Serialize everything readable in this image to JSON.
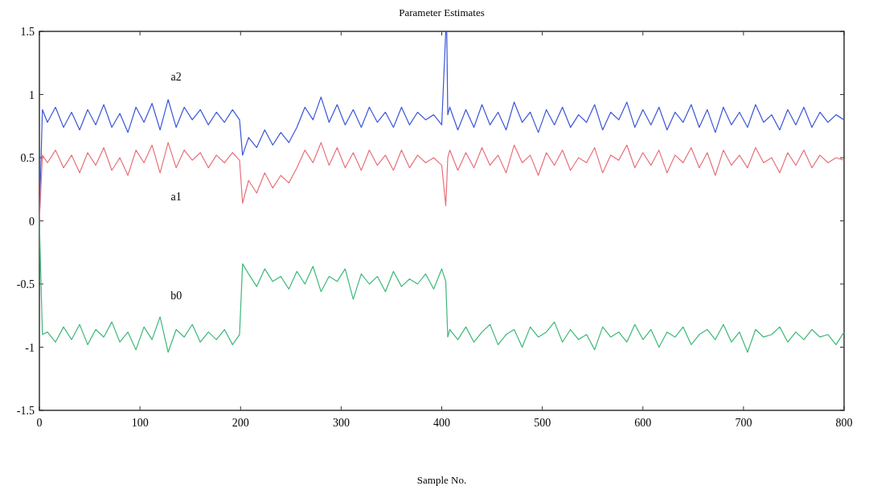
{
  "chart_data": {
    "type": "line",
    "title": "Parameter Estimates",
    "xlabel": "Sample No.",
    "xlim": [
      0,
      800
    ],
    "xticks": [
      0,
      100,
      200,
      300,
      400,
      500,
      600,
      700,
      800
    ],
    "ylim": [
      -1.5,
      1.5
    ],
    "yticks": [
      -1.5,
      -1,
      -0.5,
      0,
      0.5,
      1,
      1.5
    ],
    "grid": false,
    "marker": "none",
    "line_style": "solid",
    "x": [
      0,
      3,
      8,
      16,
      24,
      32,
      40,
      48,
      56,
      64,
      72,
      80,
      88,
      96,
      104,
      112,
      120,
      128,
      136,
      144,
      152,
      160,
      168,
      176,
      184,
      192,
      199,
      202,
      208,
      216,
      224,
      232,
      240,
      248,
      256,
      264,
      272,
      280,
      288,
      296,
      304,
      312,
      320,
      328,
      336,
      344,
      352,
      360,
      368,
      376,
      384,
      392,
      400,
      404,
      405,
      406,
      408,
      416,
      424,
      432,
      440,
      448,
      456,
      464,
      472,
      480,
      488,
      496,
      504,
      512,
      520,
      528,
      536,
      544,
      552,
      560,
      568,
      576,
      584,
      592,
      600,
      608,
      616,
      624,
      632,
      640,
      648,
      656,
      664,
      672,
      680,
      688,
      696,
      704,
      712,
      720,
      728,
      736,
      744,
      752,
      760,
      768,
      776,
      784,
      792,
      800
    ],
    "series": [
      {
        "name": "a2",
        "color": "#3a55d8",
        "values": [
          0,
          0.88,
          0.78,
          0.9,
          0.74,
          0.86,
          0.72,
          0.88,
          0.76,
          0.92,
          0.74,
          0.85,
          0.7,
          0.9,
          0.78,
          0.93,
          0.72,
          0.96,
          0.74,
          0.9,
          0.8,
          0.88,
          0.76,
          0.86,
          0.78,
          0.88,
          0.8,
          0.52,
          0.66,
          0.58,
          0.72,
          0.6,
          0.7,
          0.62,
          0.74,
          0.9,
          0.8,
          0.98,
          0.78,
          0.92,
          0.76,
          0.88,
          0.74,
          0.9,
          0.78,
          0.86,
          0.74,
          0.9,
          0.76,
          0.86,
          0.8,
          0.84,
          0.76,
          1.5,
          1.5,
          0.84,
          0.9,
          0.72,
          0.88,
          0.74,
          0.92,
          0.76,
          0.86,
          0.72,
          0.94,
          0.78,
          0.86,
          0.7,
          0.88,
          0.76,
          0.9,
          0.74,
          0.84,
          0.78,
          0.92,
          0.72,
          0.86,
          0.8,
          0.94,
          0.74,
          0.88,
          0.76,
          0.9,
          0.72,
          0.86,
          0.78,
          0.92,
          0.74,
          0.88,
          0.7,
          0.9,
          0.76,
          0.86,
          0.74,
          0.92,
          0.78,
          0.84,
          0.72,
          0.88,
          0.76,
          0.9,
          0.74,
          0.86,
          0.78,
          0.84,
          0.8
        ]
      },
      {
        "name": "a1",
        "color": "#e8707a",
        "values": [
          0,
          0.52,
          0.46,
          0.56,
          0.42,
          0.52,
          0.38,
          0.54,
          0.44,
          0.58,
          0.4,
          0.5,
          0.36,
          0.56,
          0.46,
          0.6,
          0.38,
          0.62,
          0.42,
          0.56,
          0.48,
          0.54,
          0.42,
          0.52,
          0.46,
          0.54,
          0.48,
          0.14,
          0.32,
          0.22,
          0.38,
          0.26,
          0.36,
          0.3,
          0.42,
          0.56,
          0.46,
          0.62,
          0.44,
          0.58,
          0.42,
          0.54,
          0.4,
          0.56,
          0.44,
          0.52,
          0.4,
          0.56,
          0.42,
          0.52,
          0.46,
          0.5,
          0.44,
          0.12,
          0.3,
          0.5,
          0.56,
          0.4,
          0.54,
          0.42,
          0.58,
          0.44,
          0.52,
          0.38,
          0.6,
          0.46,
          0.52,
          0.36,
          0.54,
          0.44,
          0.56,
          0.4,
          0.5,
          0.46,
          0.58,
          0.38,
          0.52,
          0.48,
          0.6,
          0.42,
          0.54,
          0.44,
          0.56,
          0.38,
          0.52,
          0.46,
          0.58,
          0.42,
          0.54,
          0.36,
          0.56,
          0.44,
          0.52,
          0.42,
          0.58,
          0.46,
          0.5,
          0.38,
          0.54,
          0.44,
          0.56,
          0.42,
          0.52,
          0.46,
          0.5,
          0.48
        ]
      },
      {
        "name": "b0",
        "color": "#3cb878",
        "values": [
          0,
          -0.9,
          -0.88,
          -0.96,
          -0.84,
          -0.94,
          -0.82,
          -0.98,
          -0.86,
          -0.92,
          -0.8,
          -0.96,
          -0.88,
          -1.02,
          -0.84,
          -0.94,
          -0.76,
          -1.04,
          -0.86,
          -0.92,
          -0.82,
          -0.96,
          -0.88,
          -0.94,
          -0.86,
          -0.98,
          -0.9,
          -0.34,
          -0.42,
          -0.52,
          -0.38,
          -0.48,
          -0.44,
          -0.54,
          -0.4,
          -0.5,
          -0.36,
          -0.56,
          -0.44,
          -0.48,
          -0.38,
          -0.62,
          -0.42,
          -0.5,
          -0.44,
          -0.56,
          -0.4,
          -0.52,
          -0.46,
          -0.5,
          -0.42,
          -0.54,
          -0.38,
          -0.48,
          -0.7,
          -0.92,
          -0.86,
          -0.94,
          -0.84,
          -0.96,
          -0.88,
          -0.82,
          -0.98,
          -0.9,
          -0.86,
          -1.0,
          -0.84,
          -0.92,
          -0.88,
          -0.8,
          -0.96,
          -0.86,
          -0.94,
          -0.9,
          -1.02,
          -0.84,
          -0.92,
          -0.88,
          -0.96,
          -0.82,
          -0.94,
          -0.86,
          -1.0,
          -0.88,
          -0.92,
          -0.84,
          -0.98,
          -0.9,
          -0.86,
          -0.94,
          -0.82,
          -0.96,
          -0.88,
          -1.04,
          -0.86,
          -0.92,
          -0.9,
          -0.84,
          -0.96,
          -0.88,
          -0.94,
          -0.86,
          -0.92,
          -0.9,
          -0.98,
          -0.88
        ]
      }
    ]
  }
}
